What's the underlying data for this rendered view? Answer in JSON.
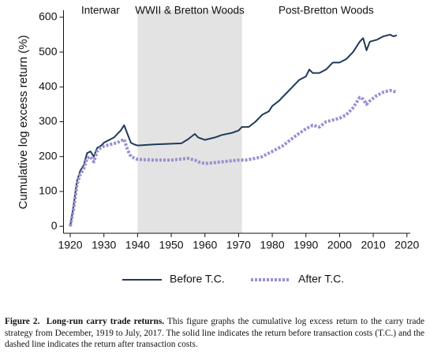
{
  "chart_data": {
    "type": "line",
    "ylabel": "Cumulative log excess return (%)",
    "xlim": [
      1918,
      2021
    ],
    "ylim": [
      -20,
      620
    ],
    "xticks": [
      1920,
      1930,
      1940,
      1950,
      1960,
      1970,
      1980,
      1990,
      2000,
      2010,
      2020
    ],
    "yticks": [
      0,
      100,
      200,
      300,
      400,
      500,
      600
    ],
    "periods": [
      {
        "label": "Interwar",
        "start": 1918,
        "end": 1940,
        "shaded": false
      },
      {
        "label": "WWII & Bretton Woods",
        "start": 1940,
        "end": 1971,
        "shaded": true
      },
      {
        "label": "Post-Bretton Woods",
        "start": 1971,
        "end": 2021,
        "shaded": false
      }
    ],
    "shade_color": "#e3e3e3",
    "legend": "bottom",
    "series": [
      {
        "name": "Before T.C.",
        "color": "#1f3a5a",
        "dashed": false,
        "x": [
          1920,
          1921,
          1922,
          1923,
          1924,
          1925,
          1926,
          1927,
          1928,
          1929,
          1930,
          1931,
          1932,
          1933,
          1934,
          1935,
          1936,
          1937,
          1938,
          1939,
          1940,
          1945,
          1950,
          1953,
          1955,
          1957,
          1958,
          1960,
          1963,
          1965,
          1968,
          1970,
          1971,
          1973,
          1975,
          1977,
          1979,
          1980,
          1982,
          1984,
          1986,
          1988,
          1990,
          1991,
          1992,
          1994,
          1996,
          1998,
          2000,
          2002,
          2004,
          2006,
          2007,
          2008,
          2009,
          2011,
          2013,
          2015,
          2016,
          2017
        ],
        "values": [
          0,
          60,
          130,
          160,
          175,
          210,
          215,
          200,
          225,
          230,
          240,
          245,
          250,
          255,
          265,
          275,
          290,
          265,
          240,
          235,
          232,
          235,
          237,
          238,
          250,
          265,
          255,
          248,
          255,
          262,
          268,
          275,
          285,
          285,
          300,
          320,
          330,
          345,
          360,
          380,
          400,
          420,
          430,
          450,
          440,
          440,
          450,
          470,
          470,
          480,
          500,
          530,
          540,
          505,
          530,
          535,
          545,
          550,
          545,
          548
        ]
      },
      {
        "name": "After T.C.",
        "color": "#9a8fd0",
        "dashed": true,
        "x": [
          1920,
          1921,
          1922,
          1923,
          1924,
          1925,
          1926,
          1927,
          1928,
          1929,
          1930,
          1932,
          1934,
          1936,
          1937,
          1938,
          1940,
          1945,
          1950,
          1955,
          1957,
          1958,
          1960,
          1965,
          1970,
          1972,
          1975,
          1977,
          1980,
          1983,
          1985,
          1987,
          1990,
          1992,
          1994,
          1996,
          1998,
          2000,
          2002,
          2004,
          2006,
          2007,
          2008,
          2009,
          2011,
          2013,
          2015,
          2017
        ],
        "values": [
          0,
          50,
          120,
          150,
          165,
          195,
          200,
          185,
          215,
          225,
          230,
          235,
          240,
          250,
          220,
          200,
          192,
          190,
          190,
          195,
          190,
          185,
          180,
          185,
          190,
          190,
          195,
          200,
          215,
          230,
          245,
          260,
          280,
          290,
          285,
          300,
          305,
          310,
          320,
          340,
          370,
          365,
          350,
          360,
          375,
          385,
          390,
          385
        ]
      }
    ]
  },
  "caption": {
    "label": "Figure 2.",
    "title": "Long-run carry trade returns.",
    "text": "This figure graphs the cumulative log excess return to the carry trade strategy from December, 1919 to July, 2017. The solid line indicates the return before transaction costs (T.C.) and the dashed line indicates the return after transaction costs."
  }
}
